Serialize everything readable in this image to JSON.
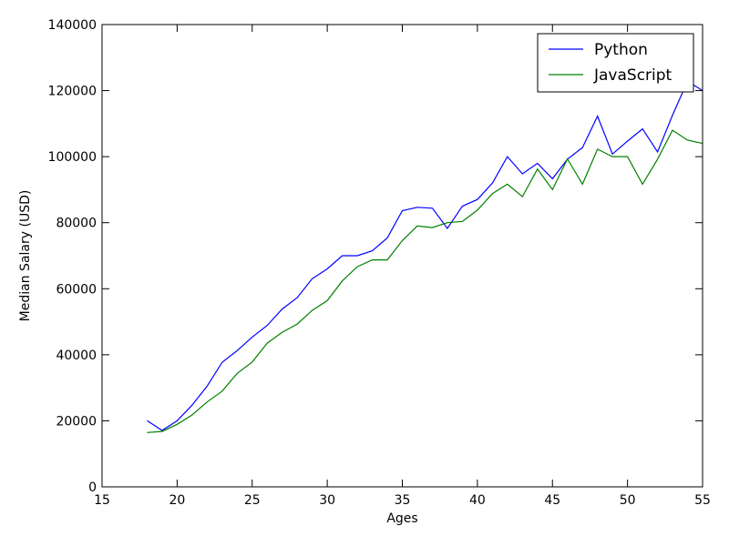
{
  "chart_data": {
    "type": "line",
    "title": "",
    "xlabel": "Ages",
    "ylabel": "Median Salary (USD)",
    "xlim": [
      15,
      55
    ],
    "ylim": [
      0,
      140000
    ],
    "xticks": [
      15,
      20,
      25,
      30,
      35,
      40,
      45,
      50,
      55
    ],
    "yticks": [
      0,
      20000,
      40000,
      60000,
      80000,
      100000,
      120000,
      140000
    ],
    "grid": false,
    "legend_position": "top-right",
    "x": [
      18,
      19,
      20,
      21,
      22,
      23,
      24,
      25,
      26,
      27,
      28,
      29,
      30,
      31,
      32,
      33,
      34,
      35,
      36,
      37,
      38,
      39,
      40,
      41,
      42,
      43,
      44,
      45,
      46,
      47,
      48,
      49,
      50,
      51,
      52,
      53,
      54,
      55
    ],
    "series": [
      {
        "name": "Python",
        "color": "#0000ff",
        "values": [
          20046,
          17100,
          20000,
          24744,
          30500,
          37732,
          41247,
          45372,
          48876,
          53850,
          57287,
          63016,
          65998,
          70003,
          70000,
          71496,
          75370,
          83640,
          84666,
          84392,
          78254,
          85000,
          87038,
          91991,
          100000,
          94796,
          97962,
          93302,
          99240,
          102736,
          112285,
          100771,
          104708,
          108423,
          101407,
          112542,
          122870,
          120000
        ]
      },
      {
        "name": "JavaScript",
        "color": "#008000",
        "values": [
          16446,
          16791,
          18942,
          21780,
          25704,
          29000,
          34372,
          37810,
          43515,
          46823,
          49293,
          53437,
          56373,
          62375,
          66674,
          68745,
          68746,
          74583,
          79000,
          78508,
          79996,
          80403,
          83820,
          88833,
          91660,
          87892,
          96243,
          90000,
          99313,
          91660,
          102264,
          100000,
          100000,
          91660,
          99240,
          108000,
          105000,
          104000
        ]
      }
    ]
  }
}
